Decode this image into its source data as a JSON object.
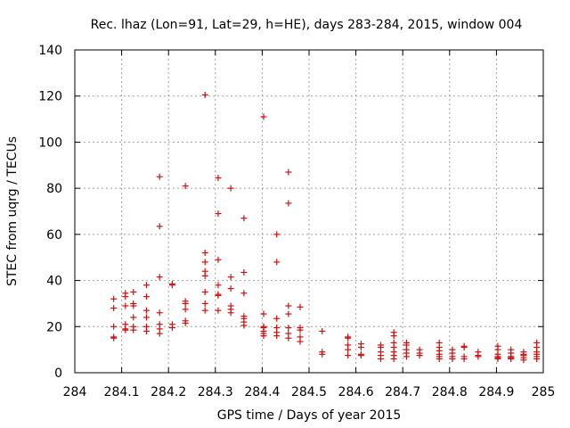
{
  "chart_data": {
    "type": "scatter",
    "title": "Rec. lhaz (Lon=91, Lat=29, h=HE), days 283-284, 2015, window 004",
    "xlabel": "GPS time / Days of year 2015",
    "ylabel": "STEC from uqrg / TECUs",
    "xlim": [
      284,
      285
    ],
    "ylim": [
      0,
      140
    ],
    "x_ticks": [
      284,
      284.1,
      284.2,
      284.3,
      284.4,
      284.5,
      284.6,
      284.7,
      284.8,
      284.9,
      285
    ],
    "x_tick_labels": [
      "284",
      "284.1",
      "284.2",
      "284.3",
      "284.4",
      "284.5",
      "284.6",
      "284.7",
      "284.8",
      "284.9",
      "285"
    ],
    "y_ticks": [
      0,
      20,
      40,
      60,
      80,
      100,
      120,
      140
    ],
    "y_tick_labels": [
      "0",
      "20",
      "40",
      "60",
      "80",
      "100",
      "120",
      "140"
    ],
    "grid": true,
    "marker": "plus",
    "color": "#d01010",
    "series": [
      {
        "points": [
          [
            284.083,
            32
          ],
          [
            284.083,
            28
          ],
          [
            284.083,
            20
          ],
          [
            284.083,
            15.5
          ],
          [
            284.083,
            15
          ],
          [
            284.108,
            34.5
          ],
          [
            284.108,
            33
          ],
          [
            284.108,
            29
          ],
          [
            284.108,
            21
          ],
          [
            284.108,
            19
          ],
          [
            284.108,
            18.5
          ],
          [
            284.125,
            35
          ],
          [
            284.125,
            30
          ],
          [
            284.125,
            29
          ],
          [
            284.125,
            24
          ],
          [
            284.125,
            20
          ],
          [
            284.125,
            18.5
          ],
          [
            284.153,
            38
          ],
          [
            284.153,
            33
          ],
          [
            284.153,
            27
          ],
          [
            284.153,
            24
          ],
          [
            284.153,
            20
          ],
          [
            284.153,
            18
          ],
          [
            284.181,
            85
          ],
          [
            284.181,
            63.5
          ],
          [
            284.181,
            41.5
          ],
          [
            284.181,
            26
          ],
          [
            284.181,
            21
          ],
          [
            284.181,
            19
          ],
          [
            284.181,
            17
          ],
          [
            284.208,
            38.5
          ],
          [
            284.208,
            38
          ],
          [
            284.208,
            21
          ],
          [
            284.208,
            19.5
          ],
          [
            284.236,
            81
          ],
          [
            284.236,
            31
          ],
          [
            284.236,
            30
          ],
          [
            284.236,
            27.5
          ],
          [
            284.236,
            22.5
          ],
          [
            284.236,
            21.5
          ],
          [
            284.278,
            120.5
          ],
          [
            284.278,
            52
          ],
          [
            284.278,
            48
          ],
          [
            284.278,
            44
          ],
          [
            284.278,
            42
          ],
          [
            284.278,
            35
          ],
          [
            284.278,
            30
          ],
          [
            284.278,
            27
          ],
          [
            284.306,
            84.5
          ],
          [
            284.306,
            69
          ],
          [
            284.306,
            49
          ],
          [
            284.306,
            38
          ],
          [
            284.306,
            34
          ],
          [
            284.306,
            33.5
          ],
          [
            284.306,
            27
          ],
          [
            284.333,
            80
          ],
          [
            284.333,
            41.5
          ],
          [
            284.333,
            36.5
          ],
          [
            284.333,
            29
          ],
          [
            284.333,
            27.5
          ],
          [
            284.333,
            26
          ],
          [
            284.361,
            67
          ],
          [
            284.361,
            43.5
          ],
          [
            284.361,
            34.5
          ],
          [
            284.361,
            24.5
          ],
          [
            284.361,
            23.5
          ],
          [
            284.361,
            22
          ],
          [
            284.361,
            20.5
          ],
          [
            284.403,
            111
          ],
          [
            284.403,
            25.5
          ],
          [
            284.403,
            20
          ],
          [
            284.403,
            19.5
          ],
          [
            284.403,
            18
          ],
          [
            284.403,
            17
          ],
          [
            284.403,
            16
          ],
          [
            284.431,
            60
          ],
          [
            284.431,
            48
          ],
          [
            284.431,
            23.5
          ],
          [
            284.431,
            19.5
          ],
          [
            284.431,
            17.5
          ],
          [
            284.431,
            16
          ],
          [
            284.456,
            87
          ],
          [
            284.456,
            73.5
          ],
          [
            284.456,
            29
          ],
          [
            284.456,
            25.5
          ],
          [
            284.456,
            19.5
          ],
          [
            284.456,
            17
          ],
          [
            284.456,
            15
          ],
          [
            284.481,
            28.5
          ],
          [
            284.481,
            19.5
          ],
          [
            284.481,
            18.5
          ],
          [
            284.481,
            15.5
          ],
          [
            284.481,
            13.5
          ],
          [
            284.528,
            18
          ],
          [
            284.528,
            9
          ],
          [
            284.528,
            8
          ],
          [
            284.583,
            15.5
          ],
          [
            284.583,
            15
          ],
          [
            284.583,
            12
          ],
          [
            284.583,
            10
          ],
          [
            284.583,
            7.5
          ],
          [
            284.611,
            12.5
          ],
          [
            284.611,
            11
          ],
          [
            284.611,
            8
          ],
          [
            284.611,
            7.5
          ],
          [
            284.653,
            12
          ],
          [
            284.653,
            11
          ],
          [
            284.653,
            9
          ],
          [
            284.653,
            7.5
          ],
          [
            284.653,
            6
          ],
          [
            284.681,
            17.5
          ],
          [
            284.681,
            16
          ],
          [
            284.681,
            13
          ],
          [
            284.681,
            11
          ],
          [
            284.681,
            9
          ],
          [
            284.681,
            7.5
          ],
          [
            284.681,
            6
          ],
          [
            284.708,
            13
          ],
          [
            284.708,
            12
          ],
          [
            284.708,
            10
          ],
          [
            284.708,
            8.5
          ],
          [
            284.708,
            7
          ],
          [
            284.736,
            10
          ],
          [
            284.736,
            8.5
          ],
          [
            284.736,
            7.5
          ],
          [
            284.778,
            13
          ],
          [
            284.778,
            11
          ],
          [
            284.778,
            9.5
          ],
          [
            284.778,
            8
          ],
          [
            284.778,
            7
          ],
          [
            284.778,
            6
          ],
          [
            284.806,
            10
          ],
          [
            284.806,
            8.5
          ],
          [
            284.806,
            7
          ],
          [
            284.806,
            6
          ],
          [
            284.831,
            11.5
          ],
          [
            284.831,
            11
          ],
          [
            284.831,
            7
          ],
          [
            284.831,
            6
          ],
          [
            284.861,
            9
          ],
          [
            284.861,
            7.5
          ],
          [
            284.861,
            7
          ],
          [
            284.903,
            11.5
          ],
          [
            284.903,
            10
          ],
          [
            284.903,
            8
          ],
          [
            284.903,
            7
          ],
          [
            284.903,
            6.5
          ],
          [
            284.903,
            6
          ],
          [
            284.931,
            10
          ],
          [
            284.931,
            8.5
          ],
          [
            284.931,
            7
          ],
          [
            284.931,
            6.5
          ],
          [
            284.931,
            6
          ],
          [
            284.958,
            9
          ],
          [
            284.958,
            8
          ],
          [
            284.958,
            7.5
          ],
          [
            284.958,
            6.5
          ],
          [
            284.958,
            5.5
          ],
          [
            284.986,
            13
          ],
          [
            284.986,
            11
          ],
          [
            284.986,
            9
          ],
          [
            284.986,
            8
          ],
          [
            284.986,
            7
          ],
          [
            284.986,
            6
          ]
        ]
      }
    ]
  }
}
